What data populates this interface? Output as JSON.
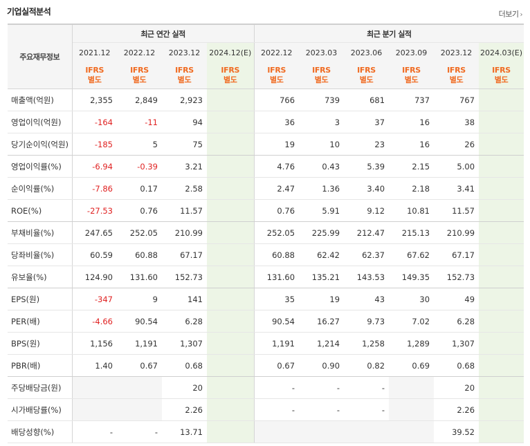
{
  "header": {
    "title": "기업실적분석",
    "more_label": "더보기",
    "more_icon": "chevron-right-icon"
  },
  "table": {
    "row_header_label": "주요재무정보",
    "annual_group_label": "최근 연간 실적",
    "quarter_group_label": "최근 분기 실적",
    "annual_periods": [
      "2021.12",
      "2022.12",
      "2023.12",
      "2024.12(E)"
    ],
    "quarter_periods": [
      "2022.12",
      "2023.03",
      "2023.06",
      "2023.09",
      "2023.12",
      "2024.03(E)"
    ],
    "ifrs_label": "IFRS",
    "basis_label": "별도",
    "estimate_bg": "#edf5e6",
    "negative_color": "#e02222",
    "accent_color": "#f06a20",
    "rows": [
      {
        "label": "매출액(억원)",
        "values": [
          "2,355",
          "2,849",
          "2,923",
          "",
          "766",
          "739",
          "681",
          "737",
          "767",
          ""
        ],
        "group_end": false
      },
      {
        "label": "영업이익(억원)",
        "values": [
          "-164",
          "-11",
          "94",
          "",
          "36",
          "3",
          "37",
          "16",
          "38",
          ""
        ],
        "group_end": false
      },
      {
        "label": "당기순이익(억원)",
        "values": [
          "-185",
          "5",
          "75",
          "",
          "19",
          "10",
          "23",
          "16",
          "26",
          ""
        ],
        "group_end": true
      },
      {
        "label": "영업이익률(%)",
        "values": [
          "-6.94",
          "-0.39",
          "3.21",
          "",
          "4.76",
          "0.43",
          "5.39",
          "2.15",
          "5.00",
          ""
        ],
        "group_end": false
      },
      {
        "label": "순이익률(%)",
        "values": [
          "-7.86",
          "0.17",
          "2.58",
          "",
          "2.47",
          "1.36",
          "3.40",
          "2.18",
          "3.41",
          ""
        ],
        "group_end": false
      },
      {
        "label": "ROE(%)",
        "values": [
          "-27.53",
          "0.76",
          "11.57",
          "",
          "0.76",
          "5.91",
          "9.12",
          "10.81",
          "11.57",
          ""
        ],
        "group_end": true
      },
      {
        "label": "부채비율(%)",
        "values": [
          "247.65",
          "252.05",
          "210.99",
          "",
          "252.05",
          "225.99",
          "212.47",
          "215.13",
          "210.99",
          ""
        ],
        "group_end": false
      },
      {
        "label": "당좌비율(%)",
        "values": [
          "60.59",
          "60.88",
          "67.17",
          "",
          "60.88",
          "62.42",
          "62.37",
          "67.62",
          "67.17",
          ""
        ],
        "group_end": false
      },
      {
        "label": "유보율(%)",
        "values": [
          "124.90",
          "131.60",
          "152.73",
          "",
          "131.60",
          "135.21",
          "143.53",
          "149.35",
          "152.73",
          ""
        ],
        "group_end": true
      },
      {
        "label": "EPS(원)",
        "values": [
          "-347",
          "9",
          "141",
          "",
          "35",
          "19",
          "43",
          "30",
          "49",
          ""
        ],
        "group_end": false
      },
      {
        "label": "PER(배)",
        "values": [
          "-4.66",
          "90.54",
          "6.28",
          "",
          "90.54",
          "16.27",
          "9.73",
          "7.02",
          "6.28",
          ""
        ],
        "group_end": false
      },
      {
        "label": "BPS(원)",
        "values": [
          "1,156",
          "1,191",
          "1,307",
          "",
          "1,191",
          "1,214",
          "1,258",
          "1,289",
          "1,307",
          ""
        ],
        "group_end": false
      },
      {
        "label": "PBR(배)",
        "values": [
          "1.40",
          "0.67",
          "0.68",
          "",
          "0.67",
          "0.90",
          "0.82",
          "0.69",
          "0.68",
          ""
        ],
        "group_end": true
      },
      {
        "label": "주당배당금(원)",
        "values": [
          "",
          "",
          "20",
          "",
          "-",
          "-",
          "-",
          "",
          "20",
          ""
        ],
        "group_end": false
      },
      {
        "label": "시가배당률(%)",
        "values": [
          "",
          "",
          "2.26",
          "",
          "-",
          "-",
          "-",
          "",
          "2.26",
          ""
        ],
        "group_end": false
      },
      {
        "label": "배당성향(%)",
        "values": [
          "-",
          "-",
          "13.71",
          "",
          "",
          "",
          "",
          "",
          "39.52",
          ""
        ],
        "group_end": false
      }
    ],
    "blank_cells": [
      [
        13,
        0
      ],
      [
        13,
        1
      ],
      [
        14,
        0
      ],
      [
        14,
        1
      ],
      [
        13,
        7
      ],
      [
        14,
        7
      ],
      [
        15,
        4
      ],
      [
        15,
        5
      ],
      [
        15,
        6
      ],
      [
        15,
        7
      ]
    ]
  }
}
